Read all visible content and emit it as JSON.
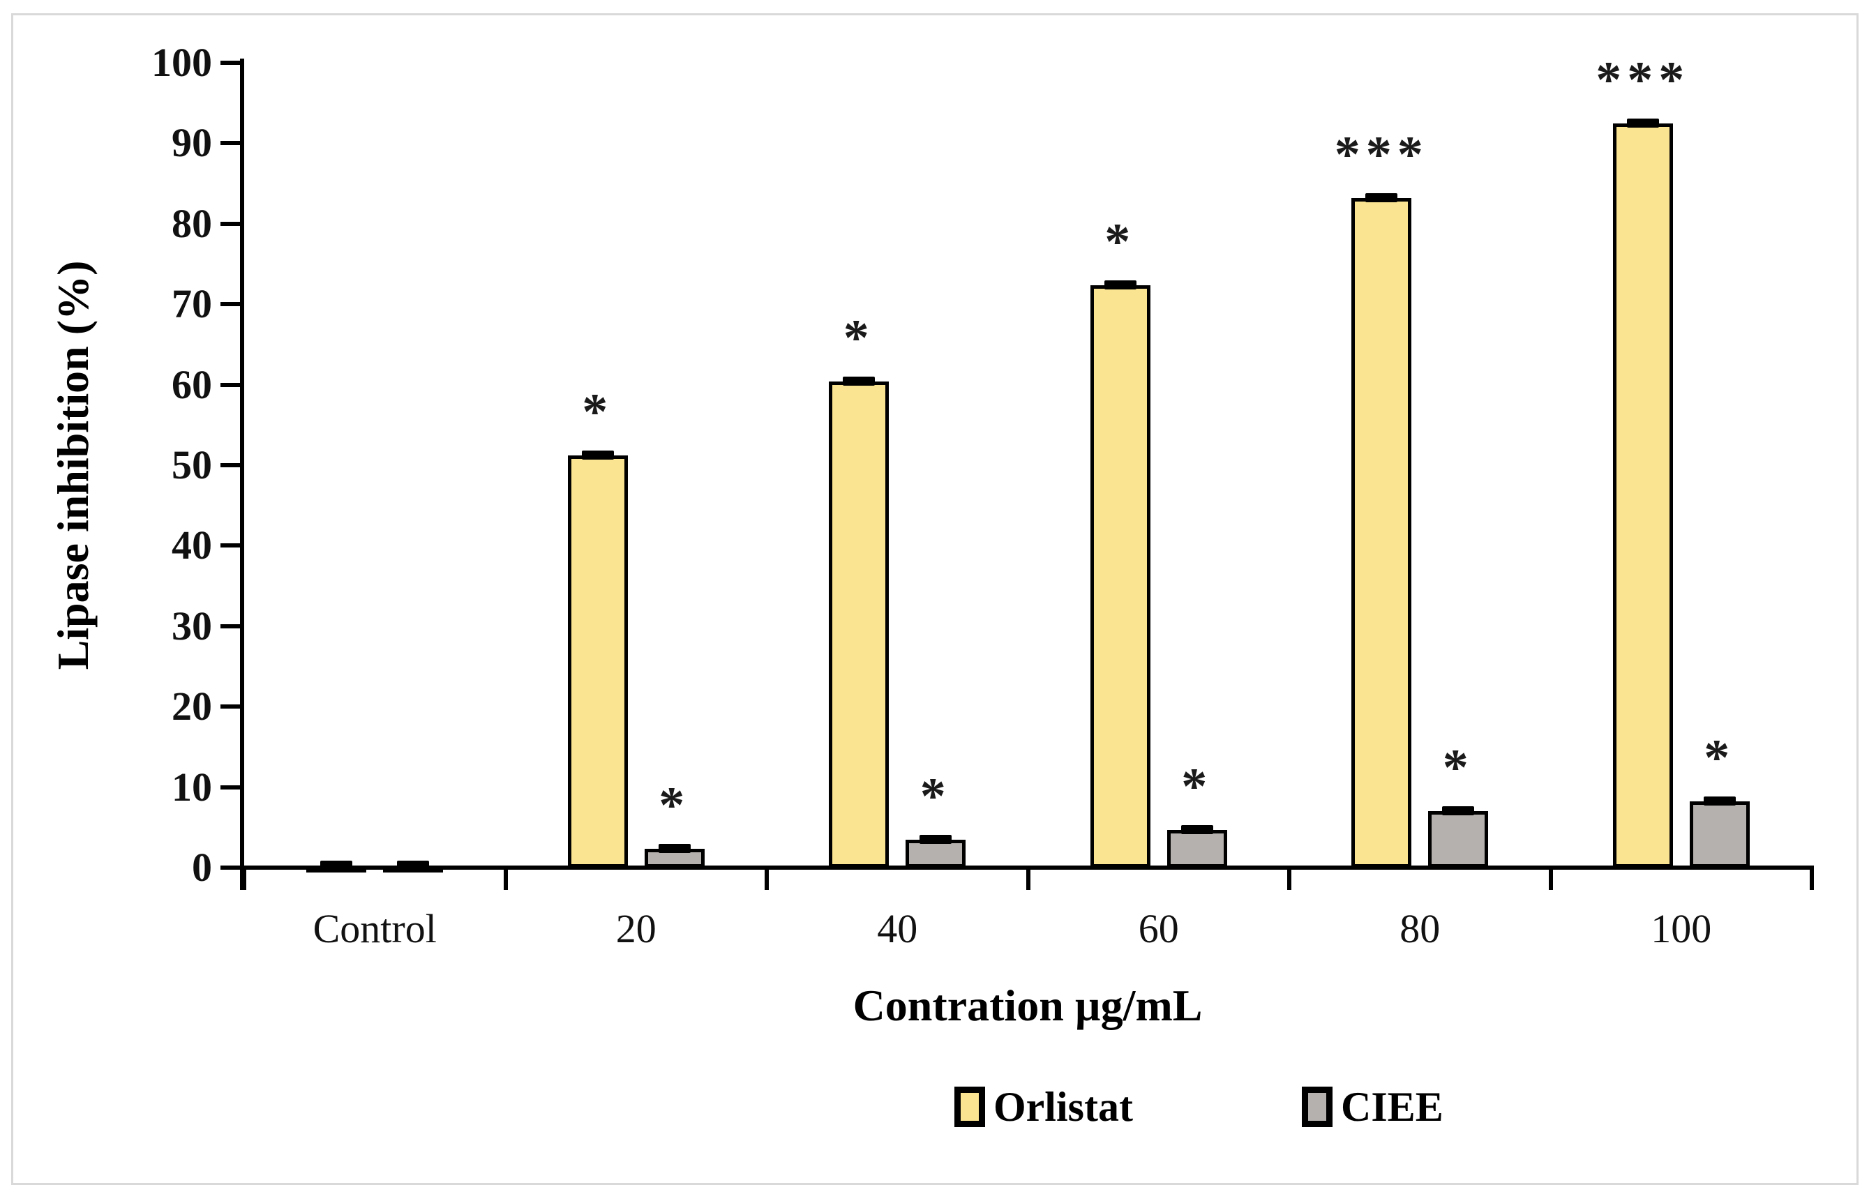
{
  "figure": {
    "background_color": "#ffffff",
    "frame_color": "#d9d9d9"
  },
  "chart_data": {
    "type": "bar",
    "title": "",
    "xlabel": "Contration µg/mL",
    "ylabel": "Lipase inhibition (%)",
    "categories": [
      "Control",
      "20",
      "40",
      "60",
      "80",
      "100"
    ],
    "ylim": [
      0,
      100
    ],
    "yticks": [
      0,
      10,
      20,
      30,
      40,
      50,
      60,
      70,
      80,
      90,
      100
    ],
    "grid": false,
    "legend_position": "bottom-center",
    "error_bars": true,
    "series": [
      {
        "name": "Orlistat",
        "color": "#fbe491",
        "border_color": "#000000",
        "values": [
          0.3,
          51.2,
          60.4,
          72.4,
          83.2,
          92.5
        ],
        "error": [
          0.3,
          0.8,
          0.5,
          0.6,
          0.5,
          0.5
        ],
        "significance": [
          "",
          "*",
          "*",
          "*",
          "***",
          "***"
        ]
      },
      {
        "name": "CIEE",
        "color": "#b5b1ae",
        "border_color": "#000000",
        "values": [
          0.3,
          2.3,
          3.5,
          4.7,
          7.0,
          8.2
        ],
        "error": [
          0.2,
          0.4,
          0.5,
          0.4,
          0.4,
          0.4
        ],
        "significance": [
          "",
          "*",
          "*",
          "*",
          "*",
          "*"
        ]
      }
    ]
  }
}
